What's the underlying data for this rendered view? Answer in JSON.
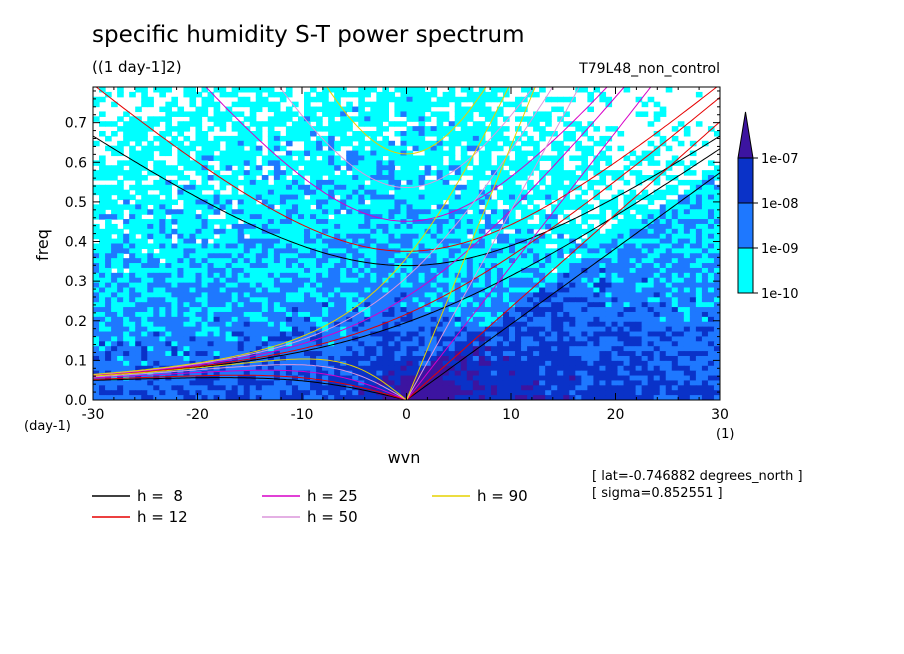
{
  "header": {
    "title": "specific humidity S-T power spectrum",
    "subtitle": "((1 day-1]2)",
    "run_label": "T79L48_non_control"
  },
  "annotations": {
    "lat": "[ lat=-0.746882 degrees_north ]",
    "sigma": "[ sigma=0.852551 ]"
  },
  "chart_data": {
    "type": "heatmap",
    "title": "specific humidity S-T power spectrum",
    "subtitle": "((1 day-1]2)",
    "xlabel": "wvn",
    "ylabel": "freq",
    "x_unit": "(1)",
    "y_unit": "(day-1)",
    "xlim": [
      -30,
      30
    ],
    "ylim": [
      0,
      0.79
    ],
    "x_ticks": [
      -30,
      -20,
      -10,
      0,
      10,
      20,
      30
    ],
    "x_tick_labels": [
      "-30",
      "-20",
      "-10",
      "0",
      "10",
      "20",
      "30"
    ],
    "y_ticks": [
      0,
      0.1,
      0.2,
      0.3,
      0.4,
      0.5,
      0.6,
      0.7
    ],
    "y_tick_labels": [
      "0.0",
      "0.1",
      "0.2",
      "0.3",
      "0.4",
      "0.5",
      "0.6",
      "0.7"
    ],
    "colorbar": {
      "levels": [
        "1e-10",
        "1e-09",
        "1e-08",
        "1e-07"
      ],
      "colors": [
        "#00ffff",
        "#1e78ff",
        "#0a32c8",
        "#3c14a0"
      ]
    },
    "dispersion_curves": [
      {
        "label": "h =  8",
        "h": 8,
        "color": "#000000"
      },
      {
        "label": "h = 12",
        "h": 12,
        "color": "#e60000"
      },
      {
        "label": "h = 25",
        "h": 25,
        "color": "#d700c8"
      },
      {
        "label": "h = 50",
        "h": 50,
        "color": "#dc96dc"
      },
      {
        "label": "h = 90",
        "h": 90,
        "color": "#e6d200"
      }
    ]
  }
}
